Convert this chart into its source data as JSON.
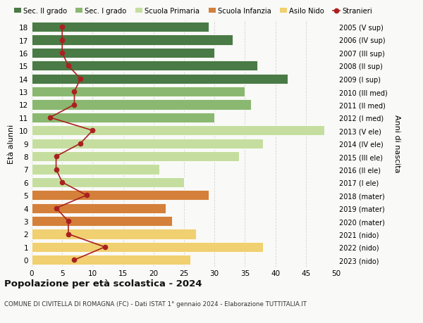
{
  "ages": [
    0,
    1,
    2,
    3,
    4,
    5,
    6,
    7,
    8,
    9,
    10,
    11,
    12,
    13,
    14,
    15,
    16,
    17,
    18
  ],
  "bar_values": [
    26,
    38,
    27,
    23,
    22,
    29,
    25,
    21,
    34,
    38,
    48,
    30,
    36,
    35,
    42,
    37,
    30,
    33,
    29
  ],
  "bar_colors": [
    "#f0d070",
    "#f0d070",
    "#f0d070",
    "#d4803a",
    "#d4803a",
    "#d4803a",
    "#c5dea0",
    "#c5dea0",
    "#c5dea0",
    "#c5dea0",
    "#c5dea0",
    "#8ab870",
    "#8ab870",
    "#8ab870",
    "#4a7a45",
    "#4a7a45",
    "#4a7a45",
    "#4a7a45",
    "#4a7a45"
  ],
  "stranieri_values": [
    7,
    12,
    6,
    6,
    4,
    9,
    5,
    4,
    4,
    8,
    10,
    3,
    7,
    7,
    8,
    6,
    5,
    5,
    5
  ],
  "right_labels": [
    "2023 (nido)",
    "2022 (nido)",
    "2021 (nido)",
    "2020 (mater)",
    "2019 (mater)",
    "2018 (mater)",
    "2017 (I ele)",
    "2016 (II ele)",
    "2015 (III ele)",
    "2014 (IV ele)",
    "2013 (V ele)",
    "2012 (I med)",
    "2011 (II med)",
    "2010 (III med)",
    "2009 (I sup)",
    "2008 (II sup)",
    "2007 (III sup)",
    "2006 (IV sup)",
    "2005 (V sup)"
  ],
  "xlim": [
    0,
    50
  ],
  "xticks": [
    0,
    5,
    10,
    15,
    20,
    25,
    30,
    35,
    40,
    45,
    50
  ],
  "ylabel_left": "Età alunni",
  "ylabel_right": "Anni di nascita",
  "title": "Popolazione per età scolastica - 2024",
  "subtitle": "COMUNE DI CIVITELLA DI ROMAGNA (FC) - Dati ISTAT 1° gennaio 2024 - Elaborazione TUTTITALIA.IT",
  "legend_labels": [
    "Sec. II grado",
    "Sec. I grado",
    "Scuola Primaria",
    "Scuola Infanzia",
    "Asilo Nido",
    "Stranieri"
  ],
  "legend_colors": [
    "#4a7a45",
    "#8ab870",
    "#c5dea0",
    "#d4803a",
    "#f0d070",
    "#aa2020"
  ],
  "bg_color": "#f9f9f7",
  "bar_height": 0.78,
  "grid_color": "#d0d0d0"
}
